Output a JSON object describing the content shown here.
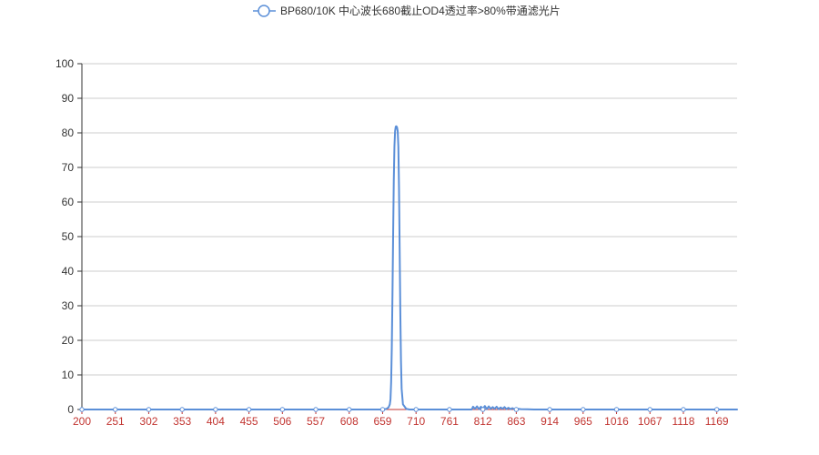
{
  "chart_data": {
    "type": "line",
    "title": "",
    "xlabel": "",
    "ylabel": "",
    "legend_position": "top-center",
    "grid": "horizontal",
    "xlim": [
      200,
      1200
    ],
    "ylim": [
      0,
      100
    ],
    "y_ticks": [
      "0",
      "10",
      "20",
      "30",
      "40",
      "50",
      "60",
      "70",
      "80",
      "90",
      "100"
    ],
    "x_ticks": [
      "200",
      "251",
      "302",
      "353",
      "404",
      "455",
      "506",
      "557",
      "608",
      "659",
      "710",
      "761",
      "812",
      "863",
      "914",
      "965",
      "1016",
      "1067",
      "1118",
      "1169"
    ],
    "colors": {
      "series": "#5b8fd8",
      "x_axis": "#c23531",
      "grid": "#cccccc",
      "tick_text": "#333333"
    },
    "series": [
      {
        "name": "BP680/10K 中心波长680截止OD4透过率>80%带通滤光片",
        "x": [
          200,
          300,
          400,
          500,
          600,
          650,
          660,
          665,
          668,
          670,
          671,
          672,
          673,
          674,
          675,
          676,
          677,
          678,
          679,
          680,
          681,
          682,
          683,
          684,
          685,
          686,
          687,
          688,
          690,
          695,
          700,
          750,
          795,
          797,
          800,
          803,
          806,
          809,
          812,
          815,
          818,
          821,
          824,
          827,
          830,
          833,
          836,
          839,
          842,
          845,
          848,
          851,
          854,
          857,
          860,
          865,
          870,
          880,
          890,
          900,
          950,
          1000,
          1100,
          1200
        ],
        "y": [
          0,
          0,
          0,
          0,
          0,
          0,
          0,
          0.2,
          0.6,
          1.5,
          3,
          8,
          18,
          33,
          50,
          66,
          76,
          80.5,
          81.8,
          81.9,
          81.6,
          80.5,
          76,
          64,
          46,
          28,
          14,
          6,
          1.5,
          0.2,
          0,
          0,
          0,
          0.8,
          0.2,
          0.9,
          0.1,
          0.8,
          0.3,
          1.0,
          0.1,
          0.9,
          0.2,
          0.7,
          0.2,
          0.8,
          0.1,
          0.6,
          0.2,
          0.7,
          0.1,
          0.5,
          0.1,
          0.4,
          0.1,
          0.2,
          0.1,
          0.05,
          0,
          0,
          0,
          0,
          0,
          0
        ]
      }
    ]
  }
}
